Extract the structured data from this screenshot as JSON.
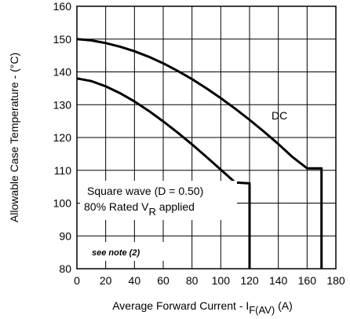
{
  "chart_data": {
    "type": "line",
    "title": "",
    "xlabel": "Average Forward Current - I",
    "xlabel_subscript": "F(AV)",
    "xlabel_suffix": " (A)",
    "ylabel": "Allowable Case Temperature - (°C)",
    "xlim": [
      0,
      180
    ],
    "ylim": [
      80,
      160
    ],
    "x_ticks": [
      "0",
      "20",
      "40",
      "60",
      "80",
      "100",
      "120",
      "140",
      "160",
      "180"
    ],
    "y_ticks": [
      "80",
      "90",
      "100",
      "110",
      "120",
      "130",
      "140",
      "150",
      "160"
    ],
    "grid": true,
    "series": [
      {
        "name": "DC",
        "x": [
          0,
          10,
          20,
          30,
          40,
          50,
          60,
          70,
          80,
          90,
          100,
          110,
          120,
          130,
          140,
          150,
          160,
          170,
          170
        ],
        "y": [
          150,
          149.6,
          148.8,
          147.7,
          146.3,
          144.6,
          142.6,
          140.3,
          137.8,
          135.0,
          132.0,
          128.8,
          125.4,
          121.8,
          118.0,
          114.0,
          110.6,
          110.6,
          80
        ]
      },
      {
        "name": "",
        "x": [
          0,
          10,
          20,
          30,
          40,
          50,
          60,
          70,
          80,
          90,
          100,
          110,
          120,
          120
        ],
        "y": [
          138,
          137.2,
          135.6,
          133.5,
          131.0,
          128.1,
          124.9,
          121.5,
          117.9,
          114.1,
          110.2,
          106.3,
          106.0,
          80
        ]
      }
    ],
    "annotations": {
      "dc_label": "DC",
      "square_wave": "Square wave (D = 0.50)",
      "rated_prefix": "80% Rated V",
      "rated_sub": "R",
      "rated_suffix": " applied",
      "note": "see note (2)"
    }
  }
}
